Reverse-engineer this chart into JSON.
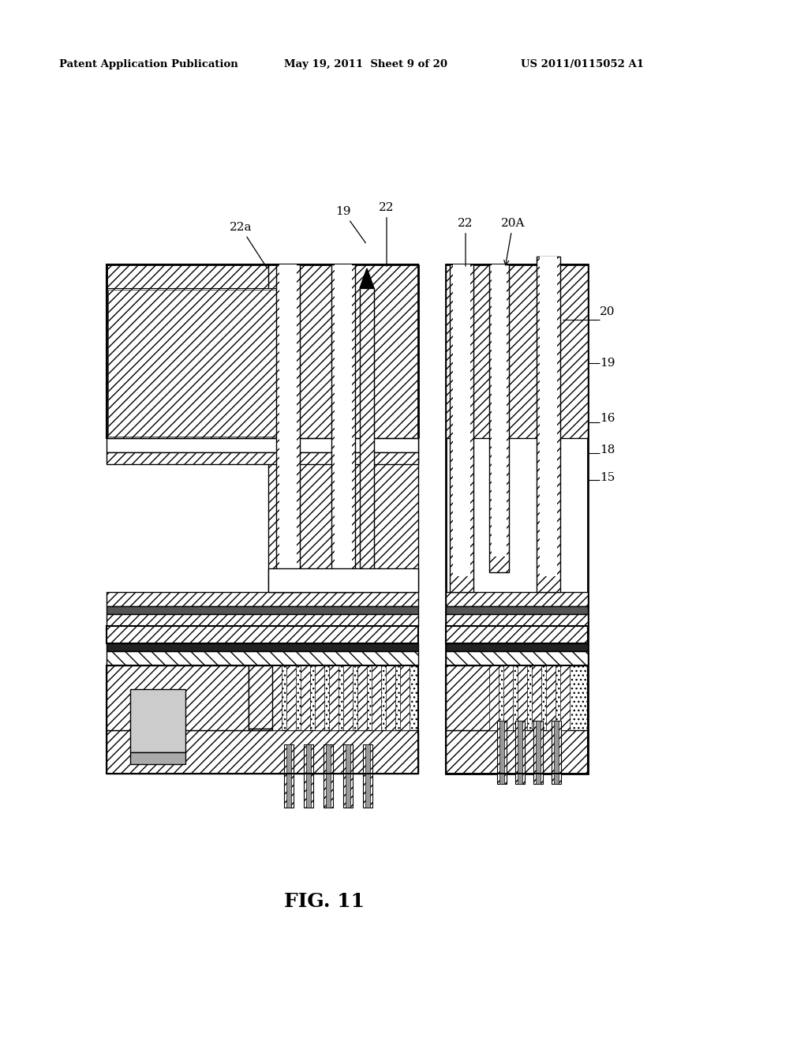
{
  "header_left": "Patent Application Publication",
  "header_mid": "May 19, 2011  Sheet 9 of 20",
  "header_right": "US 2011/0115052 A1",
  "figure_label": "FIG. 11",
  "bg_color": "#ffffff"
}
